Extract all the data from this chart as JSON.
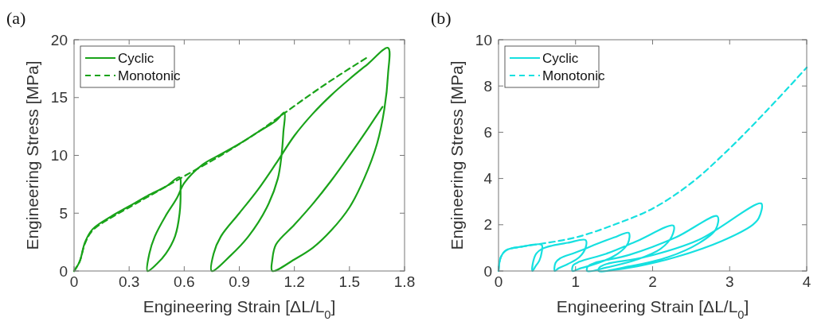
{
  "chart_data": [
    {
      "type": "line",
      "annotations": [
        "(a)"
      ],
      "xlabel": "Engineering Strain [ΔL/L$_{0}$]",
      "ylabel": "Engineering Stress [MPa]",
      "xlim": [
        0,
        1.8
      ],
      "xticks": [
        0,
        0.3,
        0.6,
        0.9,
        1.2,
        1.5,
        1.8
      ],
      "ylim": [
        0,
        20
      ],
      "yticks": [
        0,
        5,
        10,
        15,
        20
      ],
      "legend": "top left",
      "series": [
        {
          "name": "Cyclic",
          "color": "#1aa31a",
          "line_style": "solid",
          "x": [
            0,
            0.03,
            0.06,
            0.1,
            0.2,
            0.3,
            0.4,
            0.5,
            0.575,
            0.58,
            0.575,
            0.55,
            0.5,
            0.45,
            0.4,
            0.41,
            0.44,
            0.5,
            0.56,
            0.6,
            0.7,
            0.8,
            0.9,
            1.0,
            1.1,
            1.145,
            1.14,
            1.13,
            1.11,
            1.05,
            0.95,
            0.85,
            0.75,
            0.76,
            0.8,
            0.9,
            1.0,
            1.1,
            1.2,
            1.3,
            1.4,
            1.5,
            1.6,
            1.71,
            1.71,
            1.69,
            1.65,
            1.58,
            1.5,
            1.4,
            1.3,
            1.2,
            1.08,
            1.08,
            1.1,
            1.2,
            1.3,
            1.4,
            1.5,
            1.6,
            1.68
          ],
          "values": [
            0,
            0.8,
            2.5,
            3.6,
            4.7,
            5.6,
            6.5,
            7.3,
            8.1,
            7,
            5,
            3,
            1.5,
            0.6,
            0,
            1.5,
            3,
            4.8,
            6.3,
            7.6,
            9.2,
            10.1,
            11,
            12,
            13,
            13.7,
            12,
            10,
            8,
            5.5,
            3,
            1.3,
            0,
            1.5,
            3,
            5,
            7,
            9.3,
            11.7,
            13.6,
            15.2,
            16.6,
            17.9,
            19.3,
            17,
            14,
            11,
            8,
            5.5,
            3.5,
            2,
            1,
            0,
            1,
            2.3,
            4,
            5.8,
            7.8,
            10,
            12.3,
            14.2
          ]
        },
        {
          "name": "Monotonic",
          "color": "#1aa31a",
          "line_style": "dashed",
          "x": [
            0,
            0.03,
            0.06,
            0.1,
            0.2,
            0.3,
            0.4,
            0.5,
            0.6,
            0.8,
            1.0,
            1.15,
            1.3,
            1.45,
            1.6
          ],
          "values": [
            0,
            0.8,
            2.4,
            3.5,
            4.6,
            5.5,
            6.4,
            7.3,
            8.2,
            10,
            12,
            13.7,
            15.4,
            17,
            18.5
          ]
        }
      ]
    },
    {
      "type": "line",
      "annotations": [
        "(b)"
      ],
      "xlabel": "Engineering Strain [ΔL/L$_{0}$]",
      "ylabel": "Engineering Stress [MPa]",
      "xlim": [
        0,
        4
      ],
      "xticks": [
        0,
        1,
        2,
        3,
        4
      ],
      "ylim": [
        0,
        10
      ],
      "yticks": [
        0,
        2,
        4,
        6,
        8,
        10
      ],
      "legend": "top left",
      "series": [
        {
          "name": "Cyclic",
          "color": "#16e0e0",
          "line_style": "solid",
          "x": [
            0,
            0.03,
            0.1,
            0.3,
            0.56,
            0.56,
            0.53,
            0.48,
            0.44,
            0.45,
            0.49,
            0.56,
            0.7,
            0.9,
            1.13,
            1.13,
            1.05,
            0.9,
            0.78,
            0.73,
            0.74,
            0.8,
            1.0,
            1.3,
            1.5,
            1.69,
            1.68,
            1.55,
            1.3,
            1.05,
            0.96,
            0.97,
            1.05,
            1.4,
            1.8,
            2.27,
            2.25,
            2.1,
            1.8,
            1.4,
            1.15,
            1.16,
            1.25,
            1.7,
            2.3,
            2.84,
            2.82,
            2.6,
            2.2,
            1.7,
            1.3,
            1.31,
            1.4,
            1.9,
            2.6,
            3.41,
            3.38,
            3.3,
            2.9,
            2.3,
            1.8,
            1.4
          ],
          "values": [
            0,
            0.6,
            0.9,
            1.05,
            1.13,
            0.8,
            0.45,
            0.2,
            0,
            0.4,
            0.75,
            0.95,
            1.1,
            1.22,
            1.34,
            1.0,
            0.6,
            0.3,
            0.12,
            0,
            0.35,
            0.55,
            0.8,
            1.2,
            1.45,
            1.65,
            1.2,
            0.75,
            0.35,
            0.1,
            0,
            0.25,
            0.4,
            0.75,
            1.3,
            1.96,
            1.5,
            0.95,
            0.5,
            0.15,
            0,
            0.2,
            0.35,
            0.7,
            1.45,
            2.37,
            1.8,
            1.2,
            0.6,
            0.2,
            0,
            0.15,
            0.3,
            0.6,
            1.35,
            2.92,
            2.3,
            2.0,
            1.3,
            0.6,
            0.2,
            0
          ]
        },
        {
          "name": "Monotonic",
          "color": "#16e0e0",
          "line_style": "dashed",
          "x": [
            0,
            0.03,
            0.1,
            0.3,
            0.5,
            1,
            1.5,
            2,
            2.5,
            3,
            3.5,
            4
          ],
          "values": [
            0,
            0.6,
            0.9,
            1.05,
            1.15,
            1.45,
            2.0,
            2.7,
            3.8,
            5.3,
            7,
            8.8
          ]
        }
      ]
    }
  ]
}
